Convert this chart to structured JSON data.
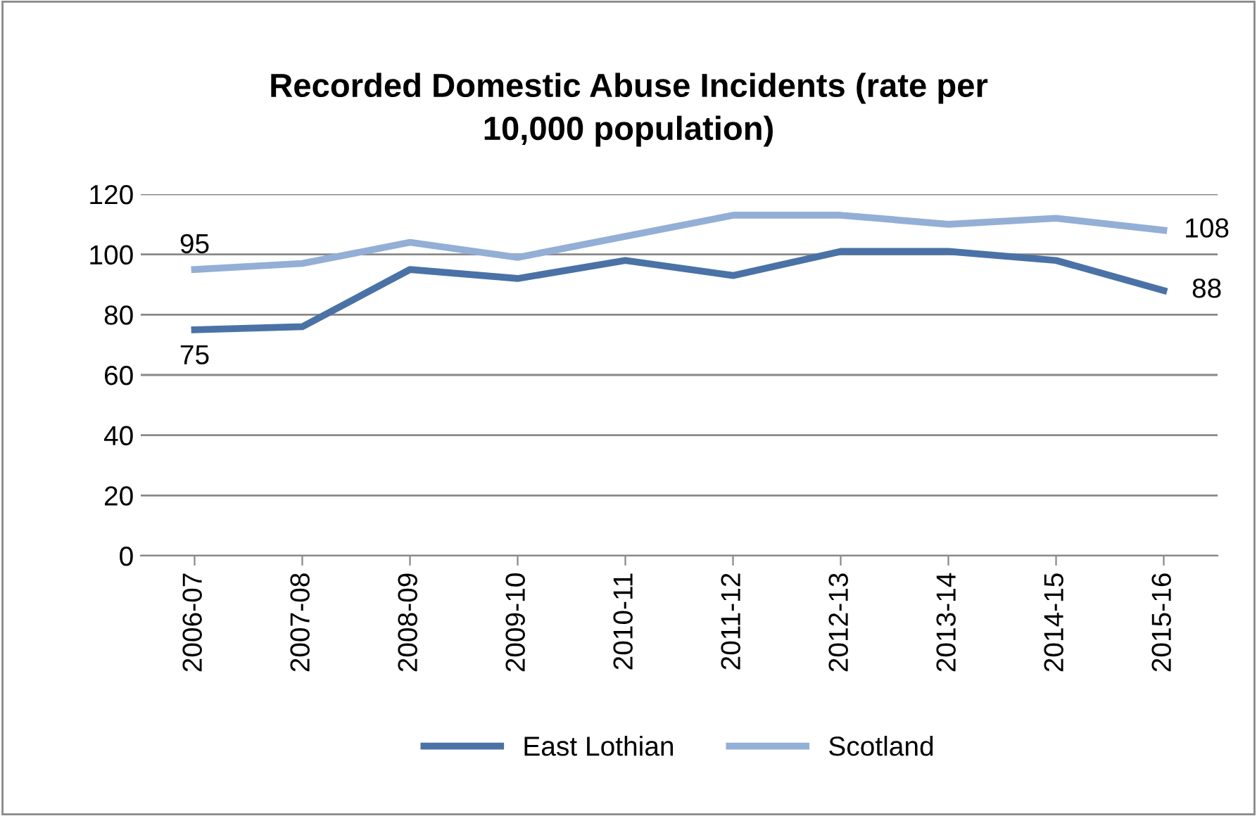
{
  "chart_data": {
    "type": "line",
    "title": "Recorded Domestic Abuse Incidents (rate per\n10,000 population)",
    "categories": [
      "2006-07",
      "2007-08",
      "2008-09",
      "2009-10",
      "2010-11",
      "2011-12",
      "2012-13",
      "2013-14",
      "2014-15",
      "2015-16"
    ],
    "series": [
      {
        "name": "East Lothian",
        "color": "#4a72a6",
        "values": [
          75,
          76,
          95,
          92,
          98,
          93,
          101,
          101,
          98,
          88
        ],
        "value_labels": [
          "75",
          null,
          null,
          null,
          null,
          null,
          null,
          null,
          null,
          "88"
        ]
      },
      {
        "name": "Scotland",
        "color": "#94afd6",
        "values": [
          95,
          97,
          104,
          99,
          106,
          113,
          113,
          110,
          112,
          108
        ],
        "value_labels": [
          "95",
          null,
          null,
          null,
          null,
          null,
          null,
          null,
          null,
          "108"
        ]
      }
    ],
    "ylim": [
      0,
      120
    ],
    "yticks": [
      0,
      20,
      40,
      60,
      80,
      100,
      120
    ],
    "grid": "y",
    "legend": "bottom",
    "marker": "none",
    "line_style": "solid"
  }
}
